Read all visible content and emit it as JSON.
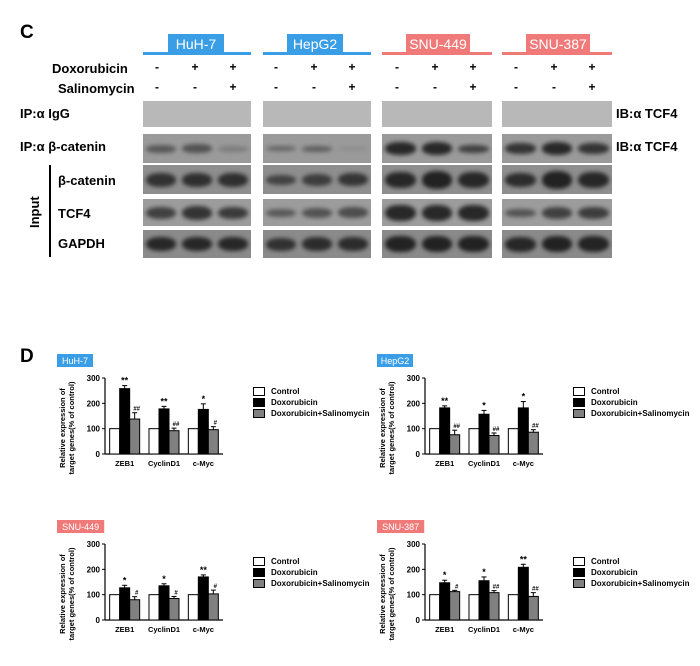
{
  "panel_c": {
    "letter": "C",
    "cell_lines": [
      {
        "name": "HuH-7",
        "color": "#3a9ee6"
      },
      {
        "name": "HepG2",
        "color": "#3a9ee6"
      },
      {
        "name": "SNU-449",
        "color": "#f07a7a"
      },
      {
        "name": "SNU-387",
        "color": "#f07a7a"
      }
    ],
    "treatments": [
      {
        "label": "Doxorubicin",
        "signs": [
          "-",
          "+",
          "+"
        ]
      },
      {
        "label": "Salinomycin",
        "signs": [
          "-",
          "-",
          "+"
        ]
      }
    ],
    "rows": [
      {
        "label": "IP:α IgG",
        "right_label": "IB:α TCF4"
      },
      {
        "label": "IP:α  β-catenin",
        "right_label": "IB:α TCF4"
      },
      {
        "label": "β-catenin",
        "right_label": ""
      },
      {
        "label": "TCF4",
        "right_label": ""
      },
      {
        "label": "GAPDH",
        "right_label": ""
      }
    ],
    "input_label": "Input"
  },
  "panel_d": {
    "letter": "D",
    "legend": [
      {
        "label": "Control",
        "color": "#ffffff"
      },
      {
        "label": "Doxorubicin",
        "color": "#000000"
      },
      {
        "label": "Doxorubicin+Salinomycin",
        "color": "#808080"
      }
    ]
  },
  "chart_data": [
    {
      "type": "bar",
      "title": "HuH-7",
      "title_color": "#3a9ee6",
      "ylabel": "Relative expression of target genes(% of control)",
      "ylim": [
        0,
        300
      ],
      "yticks": [
        "0",
        "100",
        "200",
        "300"
      ],
      "categories": [
        "ZEB1",
        "CyclinD1",
        "c-Myc"
      ],
      "series": [
        {
          "name": "Control",
          "values": [
            100,
            100,
            100
          ],
          "errors": [
            0,
            0,
            0
          ]
        },
        {
          "name": "Doxorubicin",
          "values": [
            258,
            178,
            176
          ],
          "errors": [
            12,
            10,
            22
          ]
        },
        {
          "name": "Doxorubicin+Salinomycin",
          "values": [
            138,
            92,
            96
          ],
          "errors": [
            25,
            10,
            12
          ]
        }
      ],
      "annotations": [
        [
          "",
          "**",
          "##"
        ],
        [
          "",
          "**",
          "##"
        ],
        [
          "",
          "*",
          "#"
        ]
      ]
    },
    {
      "type": "bar",
      "title": "HepG2",
      "title_color": "#3a9ee6",
      "ylabel": "Relative expression of target genes(% of control)",
      "ylim": [
        0,
        300
      ],
      "yticks": [
        "0",
        "100",
        "200",
        "300"
      ],
      "categories": [
        "ZEB1",
        "CyclinD1",
        "c-Myc"
      ],
      "series": [
        {
          "name": "Control",
          "values": [
            100,
            100,
            100
          ],
          "errors": [
            0,
            0,
            0
          ]
        },
        {
          "name": "Doxorubicin",
          "values": [
            182,
            157,
            182
          ],
          "errors": [
            8,
            15,
            25
          ]
        },
        {
          "name": "Doxorubicin+Salinomycin",
          "values": [
            76,
            73,
            86
          ],
          "errors": [
            18,
            10,
            10
          ]
        }
      ],
      "annotations": [
        [
          "",
          "**",
          "##"
        ],
        [
          "",
          "*",
          "##"
        ],
        [
          "",
          "*",
          "##"
        ]
      ]
    },
    {
      "type": "bar",
      "title": "SNU-449",
      "title_color": "#f07a7a",
      "ylabel": "Relative expression of target genes(% of control)",
      "ylim": [
        0,
        300
      ],
      "yticks": [
        "0",
        "100",
        "200",
        "300"
      ],
      "categories": [
        "ZEB1",
        "CyclinD1",
        "c-Myc"
      ],
      "series": [
        {
          "name": "Control",
          "values": [
            100,
            100,
            100
          ],
          "errors": [
            0,
            0,
            0
          ]
        },
        {
          "name": "Doxorubicin",
          "values": [
            127,
            135,
            170
          ],
          "errors": [
            10,
            8,
            8
          ]
        },
        {
          "name": "Doxorubicin+Salinomycin",
          "values": [
            80,
            85,
            103
          ],
          "errors": [
            12,
            8,
            15
          ]
        }
      ],
      "annotations": [
        [
          "",
          "*",
          "#"
        ],
        [
          "",
          "*",
          "#"
        ],
        [
          "",
          "**",
          "#"
        ]
      ]
    },
    {
      "type": "bar",
      "title": "SNU-387",
      "title_color": "#f07a7a",
      "ylabel": "Relative expression of target genes(% of control)",
      "ylim": [
        0,
        300
      ],
      "yticks": [
        "0",
        "100",
        "200",
        "300"
      ],
      "categories": [
        "ZEB1",
        "CyclinD1",
        "c-Myc"
      ],
      "series": [
        {
          "name": "Control",
          "values": [
            100,
            100,
            100
          ],
          "errors": [
            0,
            0,
            0
          ]
        },
        {
          "name": "Doxorubicin",
          "values": [
            147,
            155,
            208
          ],
          "errors": [
            10,
            15,
            12
          ]
        },
        {
          "name": "Doxorubicin+Salinomycin",
          "values": [
            112,
            108,
            93
          ],
          "errors": [
            5,
            8,
            15
          ]
        }
      ],
      "annotations": [
        [
          "",
          "*",
          "#"
        ],
        [
          "",
          "*",
          "##"
        ],
        [
          "",
          "**",
          "##"
        ]
      ]
    }
  ]
}
